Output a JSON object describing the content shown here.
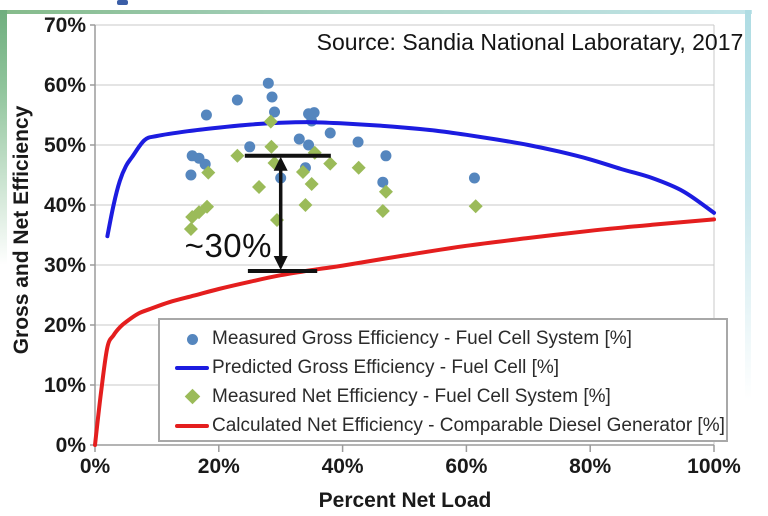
{
  "source_note": "Source: Sandia National Laboratary, 2017",
  "frame": {
    "accent_left": "#6fae7e",
    "accent_right": "#bfe3ea"
  },
  "chart_data": {
    "type": "scatter-line-combo",
    "xlabel": "Percent Net Load",
    "ylabel": "Gross and Net Efficiency",
    "xlim": [
      0,
      100
    ],
    "ylim": [
      0,
      70
    ],
    "x_ticks": [
      0,
      20,
      40,
      60,
      80,
      100
    ],
    "y_ticks": [
      0,
      10,
      20,
      30,
      40,
      50,
      60,
      70
    ],
    "tick_suffix": "%",
    "grid": "horizontal",
    "legend_position": "inside-bottom",
    "colors": {
      "grid": "#c9c9c9",
      "axis": "#9b9b9b",
      "tick_label": "#1a1a1a",
      "annotation": "#111111"
    },
    "series": [
      {
        "name": "Measured Gross Efficiency - Fuel Cell System [%]",
        "type": "scatter",
        "marker": "circle",
        "color": "#5586be",
        "points": [
          [
            28,
            60.3
          ],
          [
            23,
            57.5
          ],
          [
            28.6,
            58
          ],
          [
            18,
            55
          ],
          [
            29,
            55.5
          ],
          [
            34.5,
            55.2
          ],
          [
            35.4,
            55.4
          ],
          [
            35,
            54
          ],
          [
            38,
            52
          ],
          [
            42.5,
            50.5
          ],
          [
            33,
            51
          ],
          [
            34.5,
            50
          ],
          [
            25,
            49.7
          ],
          [
            15.7,
            48.2
          ],
          [
            16.8,
            47.8
          ],
          [
            17.8,
            46.8
          ],
          [
            15.5,
            45
          ],
          [
            30,
            44.5
          ],
          [
            34,
            46.2
          ],
          [
            47,
            48.2
          ],
          [
            46.5,
            43.8
          ],
          [
            61.3,
            44.5
          ]
        ]
      },
      {
        "name": "Predicted Gross Efficiency - Fuel Cell [%]",
        "type": "line",
        "color": "#1c1ce0",
        "points": [
          [
            2,
            34.8
          ],
          [
            3,
            40
          ],
          [
            4,
            44
          ],
          [
            5,
            46.5
          ],
          [
            6,
            48
          ],
          [
            8,
            50.8
          ],
          [
            10,
            51.5
          ],
          [
            15,
            52.3
          ],
          [
            20,
            52.9
          ],
          [
            25,
            53.4
          ],
          [
            30,
            53.7
          ],
          [
            35,
            53.8
          ],
          [
            40,
            53.6
          ],
          [
            45,
            53.3
          ],
          [
            50,
            52.9
          ],
          [
            55,
            52.4
          ],
          [
            60,
            51.7
          ],
          [
            65,
            50.9
          ],
          [
            70,
            50
          ],
          [
            75,
            48.9
          ],
          [
            80,
            47.6
          ],
          [
            85,
            46
          ],
          [
            90,
            44.5
          ],
          [
            95,
            42.3
          ],
          [
            100,
            38.7
          ]
        ]
      },
      {
        "name": "Measured Net Efficiency - Fuel Cell System [%]",
        "type": "scatter",
        "marker": "diamond",
        "color": "#9bbb59",
        "points": [
          [
            28.4,
            53.9
          ],
          [
            28.5,
            49.7
          ],
          [
            29,
            47
          ],
          [
            23,
            48.2
          ],
          [
            35.5,
            48.7
          ],
          [
            18.3,
            45.4
          ],
          [
            26.5,
            43
          ],
          [
            33.6,
            45.5
          ],
          [
            35,
            43.5
          ],
          [
            38,
            46.9
          ],
          [
            42.6,
            46.2
          ],
          [
            47,
            42.2
          ],
          [
            46.5,
            39
          ],
          [
            61.5,
            39.8
          ],
          [
            15.7,
            38
          ],
          [
            16.8,
            38.8
          ],
          [
            18.1,
            39.7
          ],
          [
            15.5,
            36
          ],
          [
            34,
            40
          ],
          [
            29.4,
            37.5
          ]
        ]
      },
      {
        "name": "Calculated Net Efficiency - Comparable Diesel Generator [%]",
        "type": "line",
        "color": "#e41e1e",
        "points": [
          [
            0,
            0
          ],
          [
            1,
            9
          ],
          [
            2,
            16.3
          ],
          [
            3,
            18.3
          ],
          [
            4,
            19.6
          ],
          [
            5,
            20.5
          ],
          [
            7,
            21.9
          ],
          [
            9,
            22.7
          ],
          [
            12,
            23.8
          ],
          [
            16,
            24.9
          ],
          [
            20,
            26
          ],
          [
            25,
            27.2
          ],
          [
            30,
            28.3
          ],
          [
            36,
            29.3
          ],
          [
            40,
            29.9
          ],
          [
            50,
            31.6
          ],
          [
            60,
            33.2
          ],
          [
            70,
            34.5
          ],
          [
            80,
            35.7
          ],
          [
            90,
            36.7
          ],
          [
            100,
            37.6
          ]
        ]
      }
    ],
    "annotation": {
      "label": "~30%",
      "arrow_load": 30,
      "top_eff": 48.2,
      "bottom_eff": 29,
      "top_cap_load": [
        24.2,
        38.1
      ],
      "bottom_cap_load": [
        24.7,
        35.9
      ]
    }
  }
}
